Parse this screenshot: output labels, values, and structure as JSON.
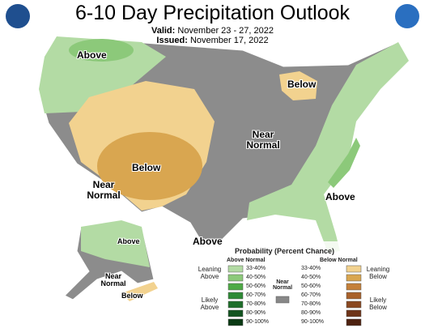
{
  "header": {
    "title": "6-10 Day Precipitation Outlook",
    "valid_label": "Valid:",
    "valid": "November 23 - 27, 2022",
    "issued_label": "Issued:",
    "issued": "November 17, 2022"
  },
  "map_labels": [
    "Above",
    "Below",
    "Near Normal",
    "Below",
    "Near Normal",
    "Above",
    "Above",
    "Above",
    "Near Normal",
    "Below"
  ],
  "legend": {
    "title": "Probability (Percent Chance)",
    "above_heading": "Above Normal",
    "below_heading": "Below Normal",
    "near_label": "Near Normal",
    "near_color": "#888888",
    "above": [
      {
        "label": "33-40%",
        "color": "#b3dba4"
      },
      {
        "label": "40-50%",
        "color": "#8cc97a"
      },
      {
        "label": "50-60%",
        "color": "#4eaa46"
      },
      {
        "label": "60-70%",
        "color": "#2e8a36"
      },
      {
        "label": "70-80%",
        "color": "#1e6e2a"
      },
      {
        "label": "80-90%",
        "color": "#135420"
      },
      {
        "label": "90-100%",
        "color": "#0a3a14"
      }
    ],
    "below": [
      {
        "label": "33-40%",
        "color": "#f2d28f"
      },
      {
        "label": "40-50%",
        "color": "#d9a650"
      },
      {
        "label": "50-60%",
        "color": "#c4803a"
      },
      {
        "label": "60-70%",
        "color": "#a8612b"
      },
      {
        "label": "70-80%",
        "color": "#8a4820"
      },
      {
        "label": "80-90%",
        "color": "#6e3418"
      },
      {
        "label": "90-100%",
        "color": "#4e2210"
      }
    ],
    "leaning_above": "Leaning Above",
    "likely_above": "Likely Above",
    "leaning_below": "Leaning Below",
    "likely_below": "Likely Below"
  }
}
